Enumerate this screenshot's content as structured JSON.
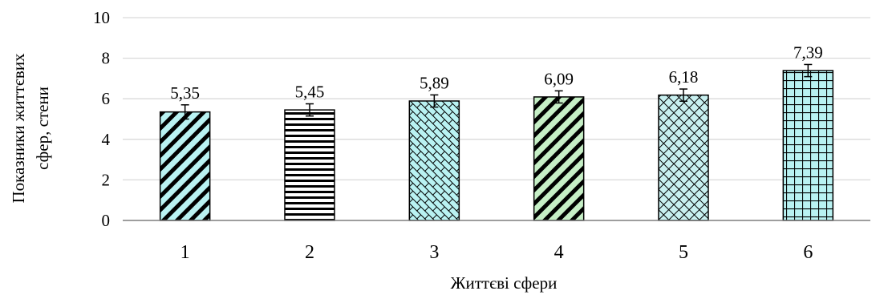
{
  "chart_data": {
    "type": "bar",
    "categories": [
      "1",
      "2",
      "3",
      "4",
      "5",
      "6"
    ],
    "values": [
      5.35,
      5.45,
      5.89,
      6.09,
      6.18,
      7.39
    ],
    "value_labels": [
      "5,35",
      "5,45",
      "5,89",
      "6,09",
      "6,18",
      "7,39"
    ],
    "error": [
      0.35,
      0.3,
      0.3,
      0.3,
      0.3,
      0.3
    ],
    "xlabel": "Життєві сфери",
    "ylabel_lines": [
      "Показники життєвих",
      "сфер, стени"
    ],
    "ylim": [
      0,
      10
    ],
    "yticks": [
      "0",
      "2",
      "4",
      "6",
      "8",
      "10"
    ],
    "ytick_values": [
      0,
      2,
      4,
      6,
      8,
      10
    ],
    "grid": true,
    "legend": "none",
    "bar_fills": [
      "#b9f2f2",
      "#ffffff",
      "#b9f2f2",
      "#c6efc6",
      "#c8f0f0",
      "#b9f2f2"
    ],
    "bar_patterns": [
      "diag-down-thick",
      "horizontal",
      "brick",
      "diag-down-thick",
      "diamond-grid",
      "grid"
    ]
  }
}
